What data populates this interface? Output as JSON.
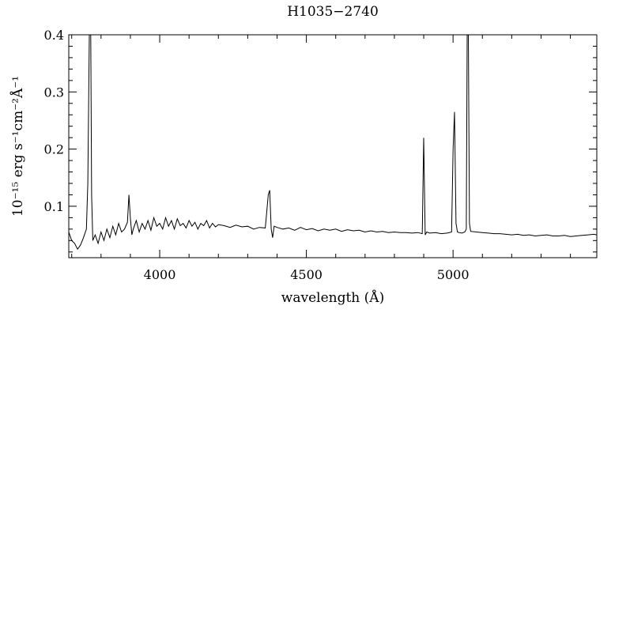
{
  "chart_data": {
    "type": "line",
    "title": "H1035−2740",
    "xlabel": "wavelength (Å)",
    "ylabel": "10⁻¹⁵ erg s⁻¹cm⁻²Å⁻¹",
    "xlim": [
      3690,
      5490
    ],
    "ylim": [
      0.01,
      0.4
    ],
    "x_ticks": [
      4000,
      4500,
      5000
    ],
    "y_ticks": [
      0.1,
      0.2,
      0.3,
      0.4
    ],
    "x_tick_labels": [
      "4000",
      "4500",
      "5000"
    ],
    "y_tick_labels": [
      "0.1",
      "0.2",
      "0.3",
      "0.4"
    ],
    "grid": false,
    "series": [
      {
        "x": [
          3690,
          3700,
          3710,
          3720,
          3730,
          3740,
          3750,
          3755,
          3760,
          3765,
          3768,
          3772,
          3780,
          3790,
          3800,
          3810,
          3820,
          3830,
          3840,
          3850,
          3860,
          3870,
          3880,
          3890,
          3895,
          3900,
          3905,
          3910,
          3920,
          3930,
          3940,
          3950,
          3960,
          3970,
          3980,
          3990,
          4000,
          4010,
          4020,
          4030,
          4040,
          4050,
          4060,
          4070,
          4080,
          4090,
          4100,
          4110,
          4120,
          4130,
          4140,
          4150,
          4160,
          4170,
          4180,
          4190,
          4200,
          4220,
          4240,
          4260,
          4280,
          4300,
          4320,
          4340,
          4360,
          4370,
          4375,
          4380,
          4385,
          4390,
          4400,
          4420,
          4440,
          4460,
          4480,
          4500,
          4520,
          4540,
          4560,
          4580,
          4600,
          4620,
          4640,
          4660,
          4680,
          4700,
          4720,
          4740,
          4760,
          4780,
          4800,
          4820,
          4840,
          4860,
          4880,
          4895,
          4900,
          4905,
          4910,
          4920,
          4940,
          4960,
          4980,
          4995,
          5000,
          5005,
          5010,
          5015,
          5020,
          5030,
          5040,
          5045,
          5048,
          5052,
          5056,
          5060,
          5080,
          5100,
          5120,
          5140,
          5160,
          5180,
          5200,
          5220,
          5240,
          5260,
          5280,
          5300,
          5320,
          5340,
          5360,
          5380,
          5400,
          5420,
          5440,
          5460,
          5480,
          5490
        ],
        "y": [
          0.055,
          0.04,
          0.035,
          0.025,
          0.032,
          0.045,
          0.06,
          0.14,
          0.4,
          0.4,
          0.12,
          0.04,
          0.05,
          0.035,
          0.055,
          0.04,
          0.06,
          0.045,
          0.065,
          0.05,
          0.07,
          0.055,
          0.06,
          0.072,
          0.12,
          0.08,
          0.05,
          0.06,
          0.075,
          0.055,
          0.07,
          0.06,
          0.075,
          0.058,
          0.08,
          0.065,
          0.07,
          0.06,
          0.08,
          0.065,
          0.075,
          0.06,
          0.078,
          0.066,
          0.07,
          0.062,
          0.075,
          0.065,
          0.072,
          0.06,
          0.07,
          0.066,
          0.075,
          0.062,
          0.07,
          0.064,
          0.068,
          0.066,
          0.063,
          0.067,
          0.064,
          0.065,
          0.06,
          0.063,
          0.062,
          0.12,
          0.128,
          0.06,
          0.045,
          0.065,
          0.063,
          0.06,
          0.062,
          0.058,
          0.063,
          0.059,
          0.061,
          0.057,
          0.06,
          0.058,
          0.06,
          0.056,
          0.059,
          0.057,
          0.058,
          0.055,
          0.057,
          0.055,
          0.056,
          0.054,
          0.055,
          0.054,
          0.054,
          0.053,
          0.054,
          0.052,
          0.22,
          0.05,
          0.055,
          0.053,
          0.054,
          0.052,
          0.053,
          0.055,
          0.2,
          0.265,
          0.07,
          0.055,
          0.054,
          0.053,
          0.055,
          0.06,
          0.4,
          0.4,
          0.07,
          0.056,
          0.055,
          0.054,
          0.053,
          0.052,
          0.052,
          0.051,
          0.05,
          0.051,
          0.049,
          0.05,
          0.048,
          0.049,
          0.05,
          0.048,
          0.048,
          0.049,
          0.047,
          0.048,
          0.049,
          0.05,
          0.051,
          0.05
        ]
      }
    ]
  }
}
